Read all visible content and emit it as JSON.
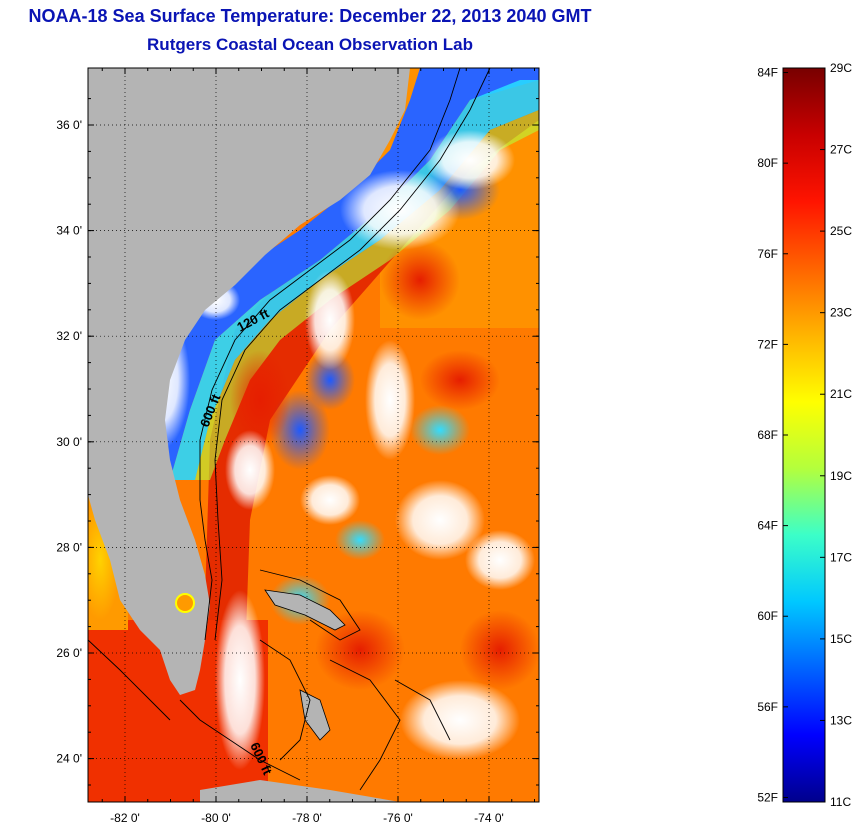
{
  "title": "NOAA-18 Sea Surface Temperature:  December 22, 2013 2040 GMT",
  "subtitle": "Rutgers Coastal Ocean Observation Lab",
  "map": {
    "lat_labels": [
      "36 0'",
      "34 0'",
      "32 0'",
      "30 0'",
      "28 0'",
      "26 0'",
      "24 0'"
    ],
    "lon_labels": [
      "-82 0'",
      "-80 0'",
      "-78 0'",
      "-76 0'",
      "-74 0'"
    ],
    "contour_labels": [
      "120 ft",
      "600 ft",
      "600 ft"
    ],
    "land_color": "#b4b4b4",
    "cloud_color": "#ffffff"
  },
  "colorbar": {
    "fahrenheit_labels": [
      "84F",
      "80F",
      "76F",
      "72F",
      "68F",
      "64F",
      "60F",
      "56F",
      "52F"
    ],
    "celsius_labels": [
      "29C",
      "27C",
      "25C",
      "23C",
      "21C",
      "19C",
      "17C",
      "15C",
      "13C",
      "11C"
    ],
    "range_celsius": [
      11,
      29
    ],
    "colors_low_to_high": [
      "#00008c",
      "#0000ff",
      "#0064ff",
      "#00c8ff",
      "#3cffc8",
      "#b4ff3c",
      "#ffff00",
      "#ffb400",
      "#ff6400",
      "#ff1400",
      "#c80000",
      "#780000"
    ]
  }
}
